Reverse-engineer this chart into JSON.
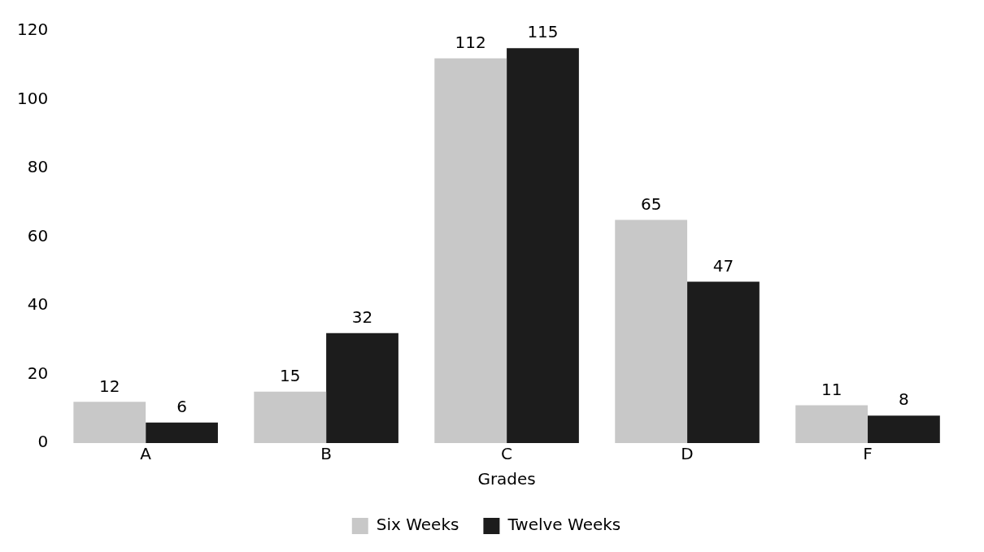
{
  "chart_data": {
    "type": "bar",
    "xlabel": "Grades",
    "categories": [
      "A",
      "B",
      "C",
      "D",
      "F"
    ],
    "series": [
      {
        "name": "Six Weeks",
        "color": "#c8c8c8",
        "values": [
          12,
          15,
          112,
          65,
          11
        ]
      },
      {
        "name": "Twelve Weeks",
        "color": "#1c1c1c",
        "values": [
          6,
          32,
          115,
          47,
          8
        ]
      }
    ],
    "ylim": [
      0,
      120
    ],
    "yticks": [
      0,
      20,
      40,
      60,
      80,
      100,
      120
    ],
    "grid": false,
    "legend": "bottom",
    "data_labels": true
  }
}
